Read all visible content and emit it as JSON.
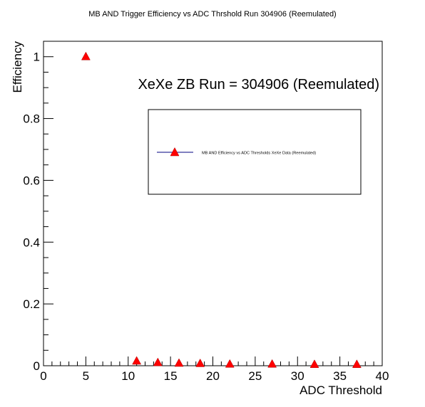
{
  "chart_data": {
    "type": "scatter",
    "title": "MB AND Trigger Efficiency vs ADC Thrshold Run 304906 (Reemulated)",
    "xlabel": "ADC Threshold",
    "ylabel": "Efficiency",
    "xlim": [
      0,
      40
    ],
    "ylim": [
      0,
      1.05
    ],
    "xticks": [
      0,
      5,
      10,
      15,
      20,
      25,
      30,
      35,
      40
    ],
    "xtick_labels": [
      "0",
      "5",
      "10",
      "15",
      "20",
      "25",
      "30",
      "35",
      "40"
    ],
    "yticks": [
      0,
      0.2,
      0.4,
      0.6,
      0.8,
      1
    ],
    "ytick_labels": [
      "0",
      "0.2",
      "0.4",
      "0.6",
      "0.8",
      "1"
    ],
    "grid": false,
    "annotation": "XeXe ZB Run = 304906 (Reemulated)",
    "legend": {
      "position": "right, upper-middle",
      "entries": [
        {
          "label": "MB AND Efficiency vs ADC Thresholds XeXe Data (Reemulated)"
        }
      ]
    },
    "series": [
      {
        "marker": "triangle",
        "marker_color": "#ff0000",
        "line_color": "#000080",
        "x": [
          5,
          11,
          13.5,
          16,
          18.5,
          22,
          27,
          32,
          37
        ],
        "y": [
          1.0,
          0.015,
          0.01,
          0.008,
          0.007,
          0.005,
          0.005,
          0.004,
          0.004
        ]
      }
    ]
  }
}
